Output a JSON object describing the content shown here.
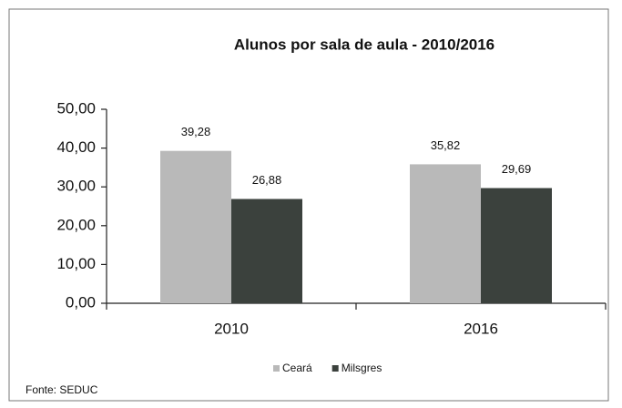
{
  "chart_data": {
    "type": "bar",
    "title": "Alunos por sala de aula - 2010/2016",
    "categories": [
      "2010",
      "2016"
    ],
    "series": [
      {
        "name": "Ceará",
        "color": "#b9b9b9",
        "values": [
          39.28,
          35.82
        ],
        "value_labels": [
          "39,28",
          "35,82"
        ]
      },
      {
        "name": "Milsgres",
        "color": "#3b413d",
        "values": [
          26.88,
          29.69
        ],
        "value_labels": [
          "26,88",
          "29,69"
        ]
      }
    ],
    "ylim": [
      0,
      50
    ],
    "yticks": [
      {
        "value": 0,
        "label": "0,00"
      },
      {
        "value": 10,
        "label": "10,00"
      },
      {
        "value": 20,
        "label": "20,00"
      },
      {
        "value": 30,
        "label": "30,00"
      },
      {
        "value": 40,
        "label": "40,00"
      },
      {
        "value": 50,
        "label": "50,00"
      }
    ],
    "source": "Fonte: SEDUC"
  }
}
